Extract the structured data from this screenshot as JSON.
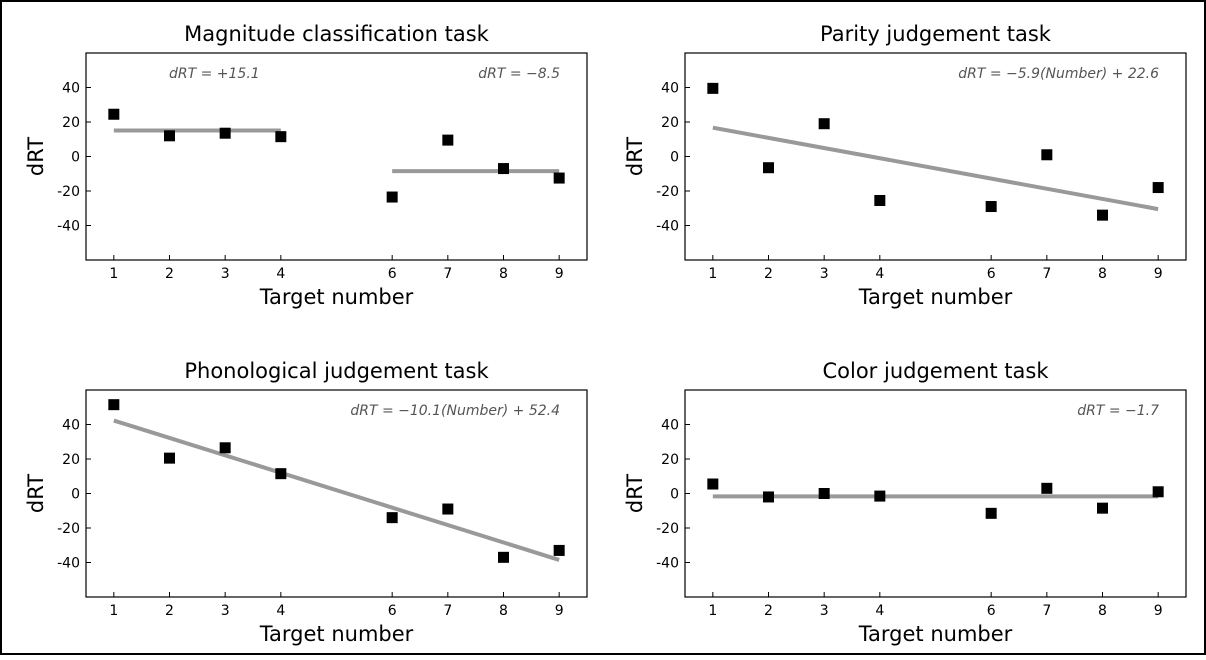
{
  "chart_data": [
    {
      "type": "scatter",
      "title": "Magnitude classification task",
      "xlabel": "Target number",
      "ylabel": "dRT",
      "xlim": [
        0.5,
        9.5
      ],
      "ylim": [
        -60,
        60
      ],
      "xticks": [
        1,
        2,
        3,
        4,
        6,
        7,
        8,
        9
      ],
      "yticks": [
        -40,
        -20,
        0,
        20,
        40
      ],
      "points": {
        "x": [
          1,
          2,
          3,
          4,
          6,
          7,
          8,
          9
        ],
        "y": [
          24.5,
          12,
          13.5,
          11.5,
          -23.5,
          9.5,
          -7,
          -12.5
        ]
      },
      "fits": [
        {
          "x": [
            1,
            4
          ],
          "y": [
            15.1,
            15.1
          ]
        },
        {
          "x": [
            6,
            9
          ],
          "y": [
            -8.5,
            -8.5
          ]
        }
      ],
      "annotations": [
        "dRT = +15.1",
        "dRT = −8.5"
      ],
      "grid": false
    },
    {
      "type": "scatter",
      "title": "Parity judgement task",
      "xlabel": "Target number",
      "ylabel": "dRT",
      "xlim": [
        0.5,
        9.5
      ],
      "ylim": [
        -60,
        60
      ],
      "xticks": [
        1,
        2,
        3,
        4,
        6,
        7,
        8,
        9
      ],
      "yticks": [
        -40,
        -20,
        0,
        20,
        40
      ],
      "points": {
        "x": [
          1,
          2,
          3,
          4,
          6,
          7,
          8,
          9
        ],
        "y": [
          39.5,
          -6.5,
          19,
          -25.5,
          -29,
          1,
          -34,
          -18
        ]
      },
      "fits": [
        {
          "x": [
            1,
            9
          ],
          "y": [
            16.7,
            -30.5
          ]
        }
      ],
      "annotations": [
        "dRT = −5.9(Number) + 22.6"
      ],
      "grid": false
    },
    {
      "type": "scatter",
      "title": "Phonological judgement task",
      "xlabel": "Target number",
      "ylabel": "dRT",
      "xlim": [
        0.5,
        9.5
      ],
      "ylim": [
        -60,
        60
      ],
      "xticks": [
        1,
        2,
        3,
        4,
        6,
        7,
        8,
        9
      ],
      "yticks": [
        -40,
        -20,
        0,
        20,
        40
      ],
      "points": {
        "x": [
          1,
          2,
          3,
          4,
          6,
          7,
          8,
          9
        ],
        "y": [
          51.5,
          20.5,
          26.5,
          11.5,
          -14,
          -9,
          -37,
          -33
        ]
      },
      "fits": [
        {
          "x": [
            1,
            9
          ],
          "y": [
            42.3,
            -38.5
          ]
        }
      ],
      "annotations": [
        "dRT = −10.1(Number) + 52.4"
      ],
      "grid": false
    },
    {
      "type": "scatter",
      "title": "Color judgement task",
      "xlabel": "Target number",
      "ylabel": "dRT",
      "xlim": [
        0.5,
        9.5
      ],
      "ylim": [
        -60,
        60
      ],
      "xticks": [
        1,
        2,
        3,
        4,
        6,
        7,
        8,
        9
      ],
      "yticks": [
        -40,
        -20,
        0,
        20,
        40
      ],
      "points": {
        "x": [
          1,
          2,
          3,
          4,
          6,
          7,
          8,
          9
        ],
        "y": [
          5.5,
          -2,
          0,
          -1.5,
          -11.5,
          3,
          -8.5,
          1
        ]
      },
      "fits": [
        {
          "x": [
            1,
            9
          ],
          "y": [
            -1.7,
            -1.7
          ]
        }
      ],
      "annotations": [
        "dRT = −1.7"
      ],
      "grid": false
    }
  ],
  "colors": {
    "points": "#000000",
    "fit_line": "#999999",
    "annotation": "#555555",
    "axes": "#000000",
    "background": "#ffffff"
  }
}
